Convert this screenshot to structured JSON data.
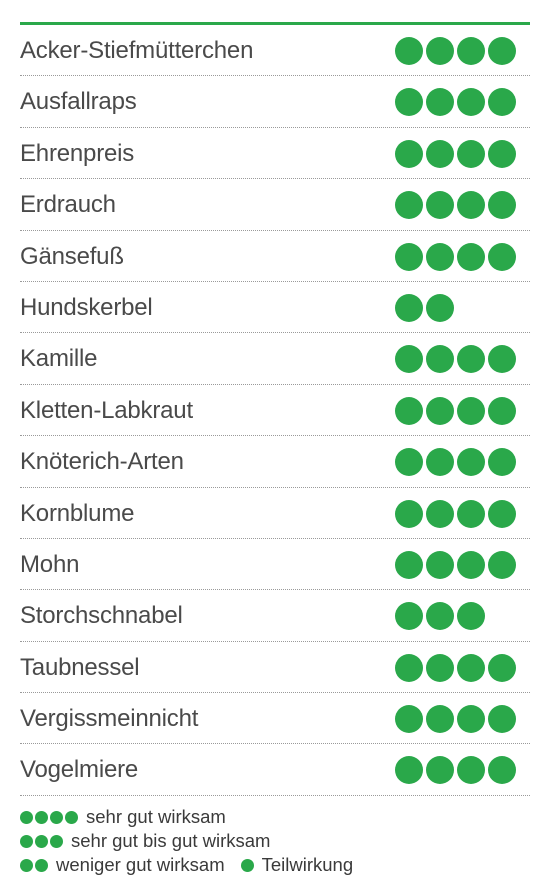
{
  "chart_data": {
    "type": "table",
    "rows": [
      {
        "label": "Acker-Stiefmütterchen",
        "rating": 4
      },
      {
        "label": "Ausfallraps",
        "rating": 4
      },
      {
        "label": "Ehrenpreis",
        "rating": 4
      },
      {
        "label": "Erdrauch",
        "rating": 4
      },
      {
        "label": "Gänsefuß",
        "rating": 4
      },
      {
        "label": "Hundskerbel",
        "rating": 2
      },
      {
        "label": "Kamille",
        "rating": 4
      },
      {
        "label": "Kletten-Labkraut",
        "rating": 4
      },
      {
        "label": "Knöterich-Arten",
        "rating": 4
      },
      {
        "label": "Kornblume",
        "rating": 4
      },
      {
        "label": "Mohn",
        "rating": 4
      },
      {
        "label": "Storchschnabel",
        "rating": 3
      },
      {
        "label": "Taubnessel",
        "rating": 4
      },
      {
        "label": "Vergissmeinnicht",
        "rating": 4
      },
      {
        "label": "Vogelmiere",
        "rating": 4
      }
    ],
    "legend": [
      {
        "rating": 4,
        "text": "sehr gut wirksam"
      },
      {
        "rating": 3,
        "text": "sehr gut bis gut wirksam"
      },
      {
        "rating": 2,
        "text": "weniger gut wirksam"
      },
      {
        "rating": 1,
        "text": "Teilwirkung"
      }
    ],
    "dot_color": "#2aa84a"
  }
}
